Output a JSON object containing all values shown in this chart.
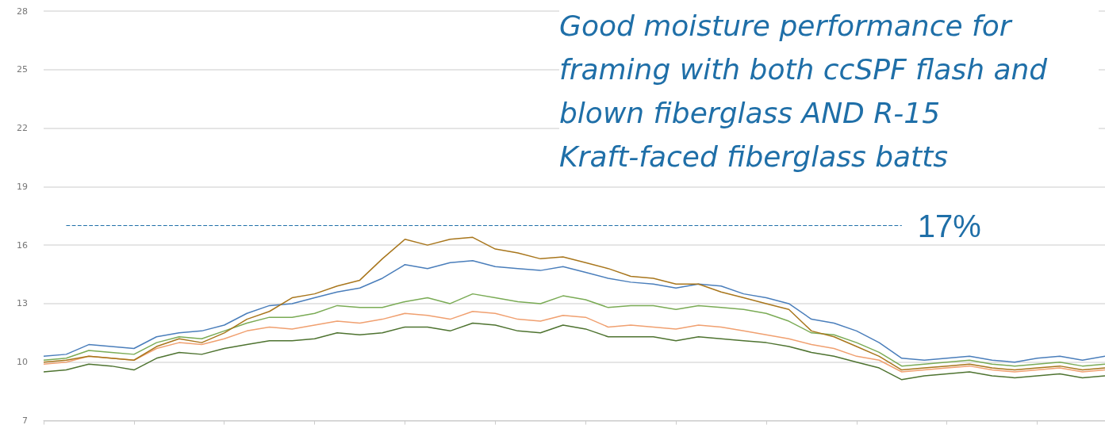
{
  "chart_data": {
    "type": "line",
    "categories": [
      null,
      null,
      null,
      null,
      null,
      null,
      null,
      null,
      null,
      null,
      null,
      null,
      null,
      null,
      null,
      null,
      null,
      null,
      null,
      null,
      null,
      null,
      null,
      null,
      null,
      null,
      null,
      null,
      null,
      null,
      null,
      null,
      null,
      null,
      null,
      null,
      null,
      null,
      null,
      null,
      null,
      null,
      null,
      null,
      null,
      null,
      null,
      null
    ],
    "series": [
      {
        "color": "#4a7ebb",
        "values": [
          10.3,
          10.4,
          10.9,
          10.8,
          10.7,
          11.3,
          11.5,
          11.6,
          11.9,
          12.5,
          12.9,
          13.0,
          13.3,
          13.6,
          13.8,
          14.3,
          15.0,
          14.8,
          15.1,
          15.2,
          14.9,
          14.8,
          14.7,
          14.9,
          14.6,
          14.3,
          14.1,
          14.0,
          13.8,
          14.0,
          13.9,
          13.5,
          13.3,
          13.0,
          12.2,
          12.0,
          11.6,
          11.0,
          10.2,
          10.1,
          10.2,
          10.3,
          10.1,
          10.0,
          10.2,
          10.3,
          10.1,
          10.3
        ]
      },
      {
        "color": "#7aab55",
        "values": [
          10.1,
          10.2,
          10.6,
          10.5,
          10.4,
          11.0,
          11.3,
          11.2,
          11.6,
          12.0,
          12.3,
          12.3,
          12.5,
          12.9,
          12.8,
          12.8,
          13.1,
          13.3,
          13.0,
          13.5,
          13.3,
          13.1,
          13.0,
          13.4,
          13.2,
          12.8,
          12.9,
          12.9,
          12.7,
          12.9,
          12.8,
          12.7,
          12.5,
          12.1,
          11.5,
          11.4,
          11.0,
          10.5,
          9.8,
          9.9,
          10.0,
          10.1,
          9.9,
          9.8,
          9.9,
          10.0,
          9.8,
          9.9
        ]
      },
      {
        "color": "#f0a070",
        "values": [
          9.9,
          10.0,
          10.3,
          10.2,
          10.1,
          10.7,
          11.0,
          10.9,
          11.2,
          11.6,
          11.8,
          11.7,
          11.9,
          12.1,
          12.0,
          12.2,
          12.5,
          12.4,
          12.2,
          12.6,
          12.5,
          12.2,
          12.1,
          12.4,
          12.3,
          11.8,
          11.9,
          11.8,
          11.7,
          11.9,
          11.8,
          11.6,
          11.4,
          11.2,
          10.9,
          10.7,
          10.3,
          10.1,
          9.5,
          9.6,
          9.7,
          9.8,
          9.6,
          9.5,
          9.6,
          9.7,
          9.5,
          9.6
        ]
      },
      {
        "color": "#4e7330",
        "values": [
          9.5,
          9.6,
          9.9,
          9.8,
          9.6,
          10.2,
          10.5,
          10.4,
          10.7,
          10.9,
          11.1,
          11.1,
          11.2,
          11.5,
          11.4,
          11.5,
          11.8,
          11.8,
          11.6,
          12.0,
          11.9,
          11.6,
          11.5,
          11.9,
          11.7,
          11.3,
          11.3,
          11.3,
          11.1,
          11.3,
          11.2,
          11.1,
          11.0,
          10.8,
          10.5,
          10.3,
          10.0,
          9.7,
          9.1,
          9.3,
          9.4,
          9.5,
          9.3,
          9.2,
          9.3,
          9.4,
          9.2,
          9.3
        ]
      },
      {
        "color": "#a8761c",
        "values": [
          10.0,
          10.1,
          10.3,
          10.2,
          10.1,
          10.8,
          11.2,
          11.0,
          11.5,
          12.2,
          12.6,
          13.3,
          13.5,
          13.9,
          14.2,
          15.3,
          16.3,
          16.0,
          16.3,
          16.4,
          15.8,
          15.6,
          15.3,
          15.4,
          15.1,
          14.8,
          14.4,
          14.3,
          14.0,
          14.0,
          13.6,
          13.3,
          13.0,
          12.7,
          11.6,
          11.3,
          10.8,
          10.3,
          9.6,
          9.7,
          9.8,
          9.9,
          9.7,
          9.6,
          9.7,
          9.8,
          9.6,
          9.7
        ]
      }
    ],
    "ylim": [
      7,
      28
    ],
    "yticks": [
      7,
      10,
      13,
      16,
      19,
      22,
      25,
      28
    ],
    "grid": "y",
    "tick_labels": "y",
    "marker": "none",
    "line_style": "solid",
    "ref_lines": [
      {
        "axis": "y",
        "value": 17,
        "label": "17%",
        "color": "#1f6fa8",
        "line_style": "dashed"
      }
    ],
    "annotations": [
      "Good moisture performance for framing with both ccSPF flash and blown fiberglass AND R-15 Kraft-faced fiberglass batts"
    ]
  }
}
